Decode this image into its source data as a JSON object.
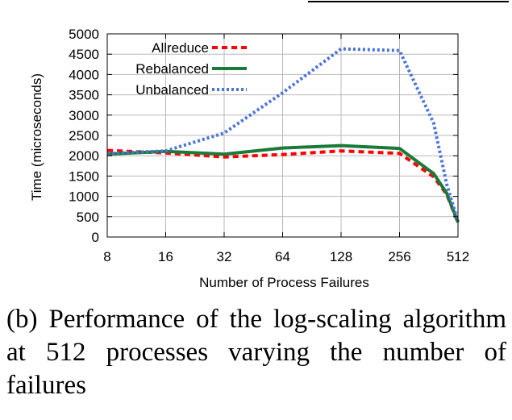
{
  "chart_data": {
    "type": "line",
    "title": "",
    "xlabel": "Number of Process Failures",
    "ylabel": "Time (microseconds)",
    "x_scale": "log2",
    "x": [
      8,
      16,
      32,
      64,
      128,
      256,
      384,
      448,
      512
    ],
    "x_tick_labels": [
      "8",
      "16",
      "32",
      "64",
      "128",
      "256",
      "512"
    ],
    "x_tick_values": [
      8,
      16,
      32,
      64,
      128,
      256,
      512
    ],
    "ylim": [
      0,
      5000
    ],
    "y_ticks": [
      0,
      500,
      1000,
      1500,
      2000,
      2500,
      3000,
      3500,
      4000,
      4500,
      5000
    ],
    "y_tick_labels": [
      "0",
      "500",
      "1000",
      "1500",
      "2000",
      "2500",
      "3000",
      "3500",
      "4000",
      "4500",
      "5000"
    ],
    "grid": true,
    "legend_position": "top-left",
    "series": [
      {
        "name": "Allreduce",
        "color": "#ff0000",
        "style": "dashed",
        "values": [
          2130,
          2070,
          1970,
          2030,
          2120,
          2060,
          1480,
          1050,
          350
        ]
      },
      {
        "name": "Rebalanced",
        "color": "#1a7a3a",
        "style": "solid",
        "values": [
          2040,
          2110,
          2040,
          2190,
          2250,
          2180,
          1560,
          1080,
          360
        ]
      },
      {
        "name": "Unbalanced",
        "color": "#4b73d9",
        "style": "dotted",
        "values": [
          2060,
          2120,
          2560,
          3550,
          4630,
          4590,
          2800,
          1300,
          380
        ]
      }
    ]
  },
  "caption": "(b) Performance of the log-scaling algorithm at 512 processes varying the number of failures"
}
